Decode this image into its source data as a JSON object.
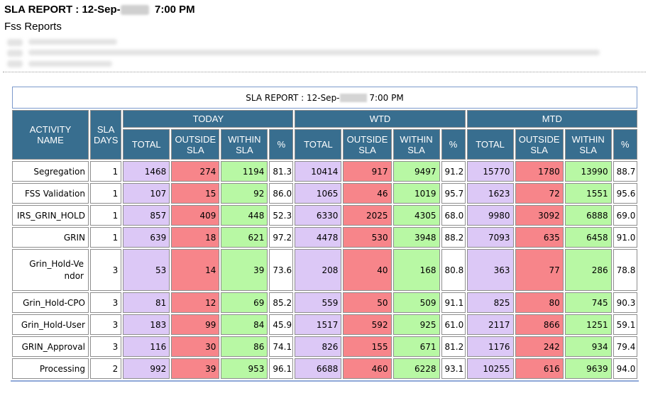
{
  "header": {
    "title_prefix": "SLA REPORT : 12-Sep-",
    "title_time": "7:00 PM",
    "subtitle": "Fss Reports"
  },
  "report": {
    "caption_prefix": "SLA REPORT : 12-Sep-",
    "caption_time": "7:00 PM",
    "col_activity": "ACTIVITY NAME",
    "col_sla_days": "SLA DAYS",
    "groups": [
      "TODAY",
      "WTD",
      "MTD"
    ],
    "sub_cols": [
      "TOTAL",
      "OUTSIDE SLA",
      "WITHIN SLA",
      "%"
    ],
    "rows": [
      {
        "name": "Segregation",
        "days": "1",
        "vals": [
          "1468",
          "274",
          "1194",
          "81.3",
          "10414",
          "917",
          "9497",
          "91.2",
          "15770",
          "1780",
          "13990",
          "88.7"
        ]
      },
      {
        "name": "FSS Validation",
        "days": "1",
        "vals": [
          "107",
          "15",
          "92",
          "86.0",
          "1065",
          "46",
          "1019",
          "95.7",
          "1623",
          "72",
          "1551",
          "95.6"
        ]
      },
      {
        "name": "IRS_GRIN_HOLD",
        "days": "1",
        "vals": [
          "857",
          "409",
          "448",
          "52.3",
          "6330",
          "2025",
          "4305",
          "68.0",
          "9980",
          "3092",
          "6888",
          "69.0"
        ]
      },
      {
        "name": "GRIN",
        "days": "1",
        "vals": [
          "639",
          "18",
          "621",
          "97.2",
          "4478",
          "530",
          "3948",
          "88.2",
          "7093",
          "635",
          "6458",
          "91.0"
        ]
      },
      {
        "name": "Grin_Hold-Vendor",
        "days": "3",
        "vals": [
          "53",
          "14",
          "39",
          "73.6",
          "208",
          "40",
          "168",
          "80.8",
          "363",
          "77",
          "286",
          "78.8"
        ]
      },
      {
        "name": "Grin_Hold-CPO",
        "days": "3",
        "vals": [
          "81",
          "12",
          "69",
          "85.2",
          "559",
          "50",
          "509",
          "91.1",
          "825",
          "80",
          "745",
          "90.3"
        ]
      },
      {
        "name": "Grin_Hold-User",
        "days": "3",
        "vals": [
          "183",
          "99",
          "84",
          "45.9",
          "1517",
          "592",
          "925",
          "61.0",
          "2117",
          "866",
          "1251",
          "59.1"
        ]
      },
      {
        "name": "GRIN_Approval",
        "days": "3",
        "vals": [
          "116",
          "30",
          "86",
          "74.1",
          "826",
          "155",
          "671",
          "81.2",
          "1176",
          "242",
          "934",
          "79.4"
        ]
      },
      {
        "name": "Processing",
        "days": "2",
        "vals": [
          "992",
          "39",
          "953",
          "96.1",
          "6688",
          "460",
          "6228",
          "93.1",
          "10255",
          "616",
          "9639",
          "94.0"
        ]
      }
    ]
  }
}
